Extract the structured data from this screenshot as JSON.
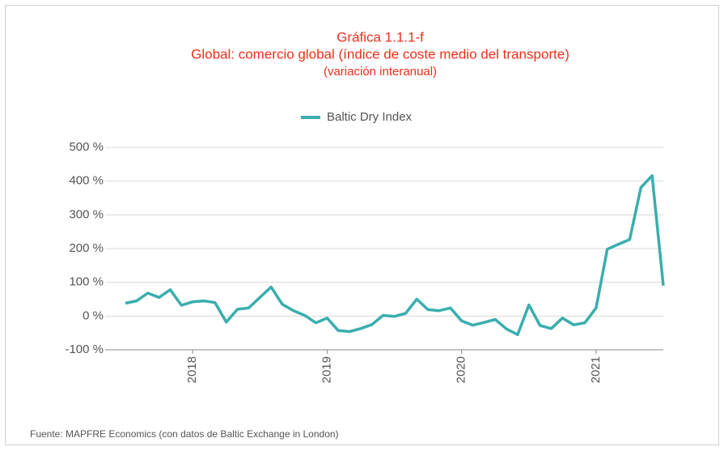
{
  "chart_data": {
    "type": "line",
    "title": "Gráfica 1.1.1-f",
    "subtitle": "Global: comercio global (índice de coste medio del transporte)",
    "subtitle2": "(variación interanual)",
    "source": "Fuente: MAPFRE Economics (con datos de Baltic Exchange in London)",
    "categories": [
      null,
      null,
      null,
      null,
      null,
      null,
      "2018",
      null,
      null,
      null,
      null,
      null,
      null,
      null,
      null,
      null,
      null,
      null,
      "2019",
      null,
      null,
      null,
      null,
      null,
      null,
      null,
      null,
      null,
      null,
      null,
      "2020",
      null,
      null,
      null,
      null,
      null,
      null,
      null,
      null,
      null,
      null,
      null,
      "2021",
      null,
      null,
      null,
      null,
      null,
      null
    ],
    "series": [
      {
        "name": "Baltic Dry Index",
        "color": "#3aaeae",
        "values": [
          38,
          45,
          68,
          55,
          78,
          32,
          42,
          45,
          40,
          -18,
          20,
          24,
          55,
          86,
          35,
          16,
          2,
          -20,
          -6,
          -43,
          -46,
          -37,
          -25,
          2,
          -1,
          8,
          50,
          19,
          16,
          24,
          -14,
          -27,
          -19,
          -10,
          -38,
          -55,
          33,
          -28,
          -37,
          -6,
          -26,
          -20,
          24,
          198,
          213,
          227,
          381,
          416,
          90
        ]
      }
    ],
    "ylim": [
      -100,
      500
    ],
    "yticks": [
      {
        "value": -100,
        "label": "-100 %"
      },
      {
        "value": 0,
        "label": "0 %"
      },
      {
        "value": 100,
        "label": "100 %"
      },
      {
        "value": 200,
        "label": "200 %"
      },
      {
        "value": 300,
        "label": "300 %"
      },
      {
        "value": 400,
        "label": "400 %"
      },
      {
        "value": 500,
        "label": "500 %"
      }
    ],
    "grid": true,
    "legend": "top"
  }
}
